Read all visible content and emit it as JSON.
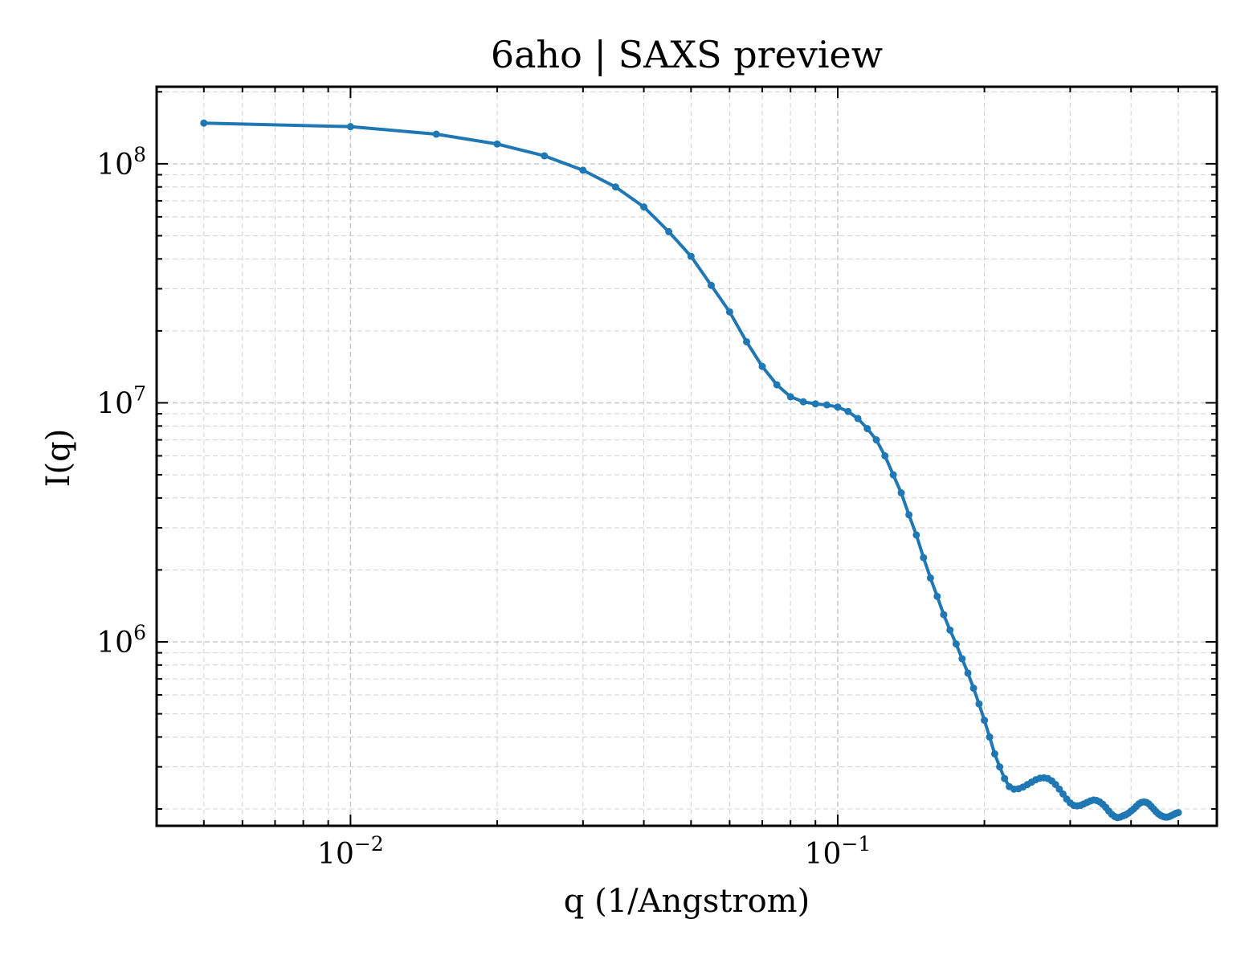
{
  "chart_data": {
    "type": "line",
    "title": "6aho | SAXS preview",
    "xlabel": "q (1/Angstrom)",
    "ylabel": "I(q)",
    "xscale": "log",
    "yscale": "log",
    "xlim": [
      0.004,
      0.6
    ],
    "ylim": [
      170000,
      210000000
    ],
    "grid": true,
    "legend": "none",
    "x_ticks": [
      {
        "base": "10",
        "exp": "−2",
        "value": 0.01
      },
      {
        "base": "10",
        "exp": "−1",
        "value": 0.1
      }
    ],
    "y_ticks": [
      {
        "base": "10",
        "exp": "6",
        "value": 1000000
      },
      {
        "base": "10",
        "exp": "7",
        "value": 10000000
      },
      {
        "base": "10",
        "exp": "8",
        "value": 100000000
      }
    ],
    "series": [
      {
        "color": "#1f77b4",
        "x": [
          0.005,
          0.01,
          0.015,
          0.02,
          0.025,
          0.03,
          0.035,
          0.04,
          0.045,
          0.05,
          0.055,
          0.06,
          0.065,
          0.07,
          0.075,
          0.08,
          0.085,
          0.09,
          0.095,
          0.1,
          0.105,
          0.11,
          0.115,
          0.12,
          0.125,
          0.13,
          0.135,
          0.14,
          0.145,
          0.15,
          0.155,
          0.16,
          0.165,
          0.17,
          0.175,
          0.18,
          0.185,
          0.19,
          0.195,
          0.2,
          0.205,
          0.21,
          0.215,
          0.22,
          0.225,
          0.23,
          0.235,
          0.24,
          0.245,
          0.25,
          0.255,
          0.26,
          0.265,
          0.27,
          0.275,
          0.28,
          0.285,
          0.29,
          0.295,
          0.3,
          0.305,
          0.31,
          0.315,
          0.32,
          0.325,
          0.33,
          0.335,
          0.34,
          0.345,
          0.35,
          0.355,
          0.36,
          0.365,
          0.37,
          0.375,
          0.38,
          0.385,
          0.39,
          0.395,
          0.4,
          0.405,
          0.41,
          0.415,
          0.42,
          0.425,
          0.43,
          0.435,
          0.44,
          0.445,
          0.45,
          0.455,
          0.46,
          0.465,
          0.47,
          0.475,
          0.48,
          0.485,
          0.49,
          0.495,
          0.5
        ],
        "y": [
          148000000,
          143000000,
          133000000,
          121000000,
          108000000,
          94000000,
          80000000,
          66000000,
          52000000,
          41000000,
          31000000,
          24000000,
          18000000,
          14200000,
          11900000,
          10600000,
          10100000,
          9900000,
          9800000,
          9600000,
          9200000,
          8600000,
          7800000,
          7000000,
          6000000,
          5000000,
          4200000,
          3400000,
          2800000,
          2250000,
          1850000,
          1550000,
          1300000,
          1120000,
          980000,
          850000,
          740000,
          640000,
          550000,
          470000,
          400000,
          340000,
          300000,
          268000,
          248000,
          242000,
          243000,
          247000,
          253000,
          259000,
          265000,
          269000,
          270000,
          268000,
          262000,
          253000,
          242000,
          231000,
          220000,
          212000,
          207000,
          206000,
          207000,
          210000,
          213000,
          216000,
          218000,
          217000,
          214000,
          209000,
          203000,
          196000,
          190000,
          186000,
          184000,
          185000,
          187000,
          189000,
          192000,
          196000,
          200000,
          205000,
          210000,
          213000,
          214000,
          213000,
          210000,
          205000,
          200000,
          195000,
          191000,
          188000,
          186000,
          185000,
          185000,
          186000,
          188000,
          190000,
          192000,
          193000
        ]
      }
    ]
  }
}
